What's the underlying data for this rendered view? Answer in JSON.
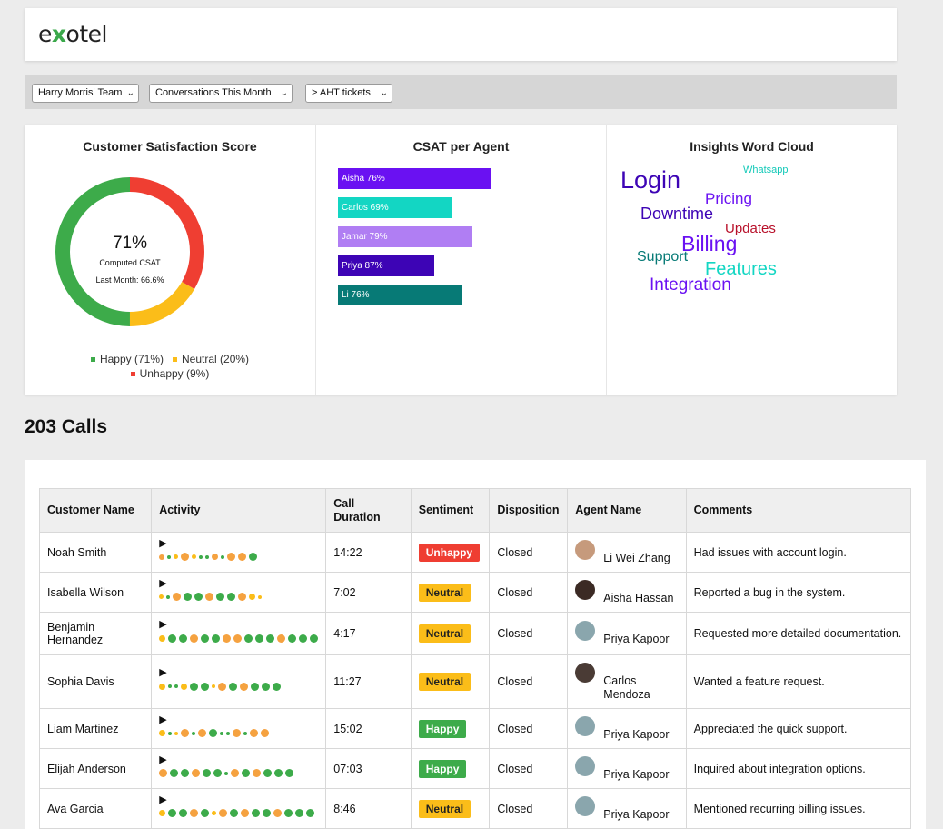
{
  "header": {
    "logo_pre": "e",
    "logo_x": "x",
    "logo_post": "otel"
  },
  "filters": {
    "team": "Harry Morris' Team",
    "period": "Conversations This Month",
    "metric": "> AHT tickets"
  },
  "csat": {
    "title": "Customer Satisfaction Score",
    "value": "71%",
    "subtitle": "Computed CSAT",
    "last_month": "Last Month: 66.6%",
    "legend": [
      "Happy (71%)",
      "Neutral (20%)",
      "Unhappy (9%)"
    ],
    "colors": {
      "happy": "#3dab4a",
      "neutral": "#fbbd19",
      "unhappy": "#ef3e32"
    }
  },
  "agent_chart": {
    "title": "CSAT per Agent",
    "bars": [
      {
        "label": "Aisha 76%",
        "value": 76,
        "color": "#6a11f2"
      },
      {
        "label": "Carlos 69%",
        "value": 69,
        "color": "#13d6c3"
      },
      {
        "label": "Jamar 79%",
        "value": 79,
        "color": "#b07ef3"
      },
      {
        "label": "Priya 87%",
        "value": 87,
        "color": "#3d04b5"
      },
      {
        "label": "Li 76%",
        "value": 76,
        "color": "#077a76"
      }
    ]
  },
  "wordcloud": {
    "title": "Insights Word Cloud",
    "words": [
      "Login",
      "Whatsapp",
      "Pricing",
      "Downtime",
      "Updates",
      "Billing",
      "Support",
      "Features",
      "Integration"
    ]
  },
  "calls": {
    "title": "203 Calls",
    "columns": [
      "Customer Name",
      "Activity",
      "Call Duration",
      "Sentiment",
      "Disposition",
      "Agent Name",
      "Comments"
    ],
    "rows": [
      {
        "customer": "Noah Smith",
        "duration": "14:22",
        "sentiment": "Unhappy",
        "disposition": "Closed",
        "agent": "Li Wei Zhang",
        "comment": "Had issues with account login."
      },
      {
        "customer": "Isabella Wilson",
        "duration": "7:02",
        "sentiment": "Neutral",
        "disposition": "Closed",
        "agent": "Aisha Hassan",
        "comment": "Reported a bug in the system."
      },
      {
        "customer": "Benjamin Hernandez",
        "duration": "4:17",
        "sentiment": "Neutral",
        "disposition": "Closed",
        "agent": "Priya Kapoor",
        "comment": "Requested more detailed documentation."
      },
      {
        "customer": "Sophia Davis",
        "duration": "11:27",
        "sentiment": "Neutral",
        "disposition": "Closed",
        "agent": "Carlos Mendoza",
        "comment": "Wanted a feature request."
      },
      {
        "customer": "Liam Martinez",
        "duration": "15:02",
        "sentiment": "Happy",
        "disposition": "Closed",
        "agent": "Priya Kapoor",
        "comment": "Appreciated the quick support."
      },
      {
        "customer": "Elijah Anderson",
        "duration": "07:03",
        "sentiment": "Happy",
        "disposition": "Closed",
        "agent": "Priya Kapoor",
        "comment": "Inquired about integration options."
      },
      {
        "customer": "Ava Garcia",
        "duration": "8:46",
        "sentiment": "Neutral",
        "disposition": "Closed",
        "agent": "Priya Kapoor",
        "comment": "Mentioned recurring billing issues."
      }
    ]
  }
}
